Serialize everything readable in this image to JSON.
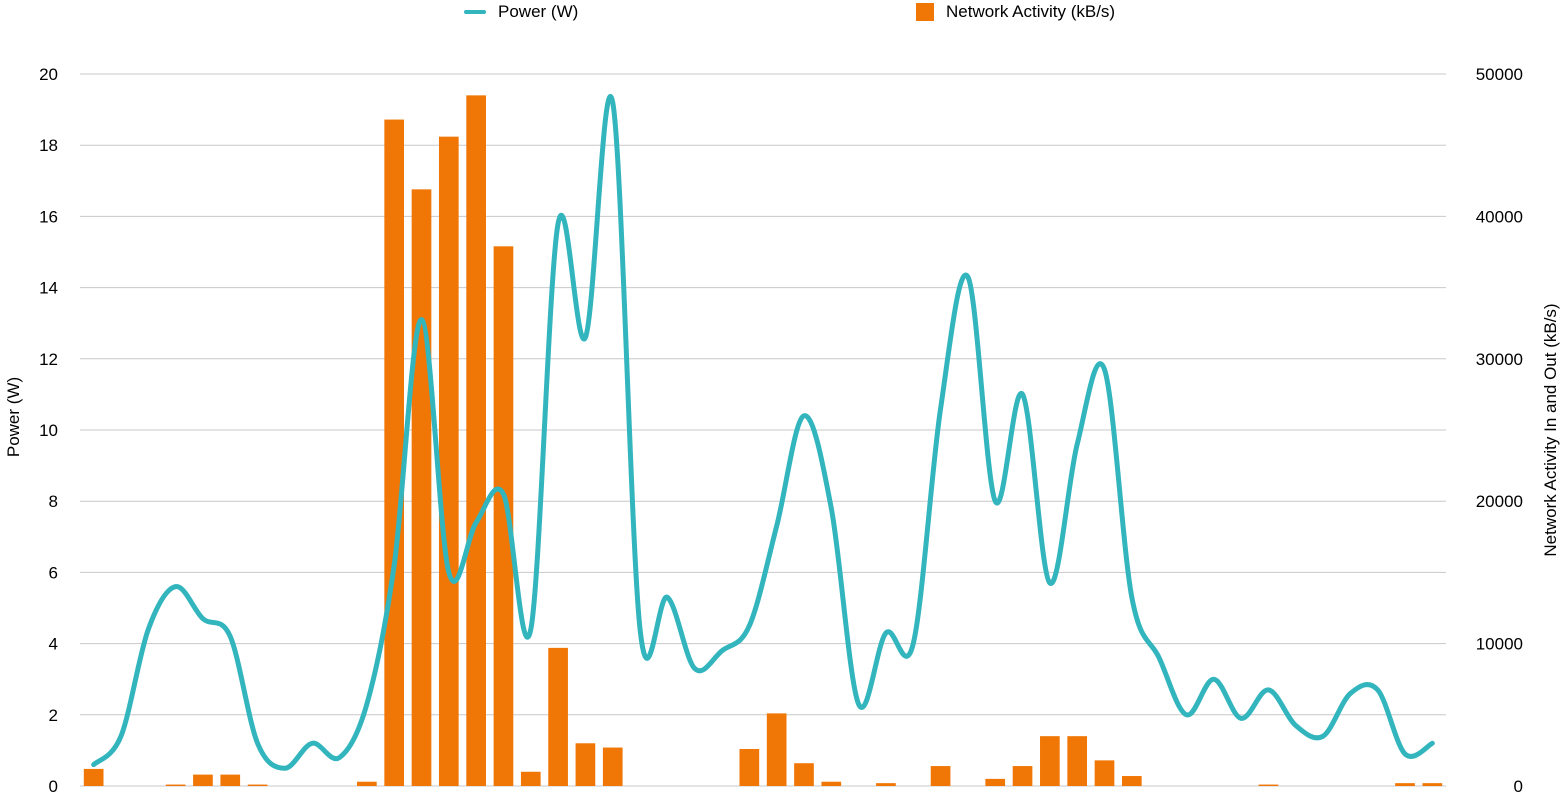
{
  "chart_data": {
    "type": "bar+line",
    "title": "",
    "legend": {
      "placement": "top",
      "entries": [
        {
          "label": "Power (W)",
          "marker": "line",
          "color": "#33B5BE"
        },
        {
          "label": "Network Activity (kB/s)",
          "marker": "box",
          "color": "#F07605"
        }
      ]
    },
    "y_left": {
      "label": "Power (W)",
      "range": [
        0,
        20
      ],
      "ticks": [
        "0",
        "2",
        "4",
        "6",
        "8",
        "10",
        "12",
        "14",
        "16",
        "18",
        "20"
      ]
    },
    "y_right": {
      "label": "Network Activity In and Out (kB/s)",
      "range": [
        0,
        50000
      ],
      "ticks": [
        "0",
        "10000",
        "20000",
        "30000",
        "40000",
        "50000"
      ]
    },
    "grid": true,
    "x": [
      1,
      2,
      3,
      4,
      5,
      6,
      7,
      8,
      9,
      10,
      11,
      12,
      13,
      14,
      15,
      16,
      17,
      18,
      19,
      20,
      21,
      22,
      23,
      24,
      25,
      26,
      27,
      28,
      29,
      30,
      31,
      32,
      33,
      34,
      35,
      36,
      37,
      38,
      39,
      40,
      41,
      42,
      43,
      44,
      45,
      46,
      47,
      48,
      49,
      50
    ],
    "series": [
      {
        "name": "Network Activity (kB/s)",
        "type": "bar",
        "axis": "right",
        "color": "#F07605",
        "values": [
          1200,
          0,
          0,
          100,
          800,
          800,
          100,
          0,
          0,
          0,
          300,
          46800,
          41900,
          45600,
          48500,
          37900,
          1000,
          9700,
          3000,
          2700,
          0,
          0,
          0,
          0,
          2600,
          5100,
          1600,
          300,
          0,
          200,
          0,
          1400,
          0,
          500,
          1400,
          3500,
          3500,
          1800,
          700,
          0,
          0,
          0,
          0,
          100,
          0,
          0,
          0,
          0,
          200,
          200
        ]
      },
      {
        "name": "Power (W)",
        "type": "line",
        "axis": "left",
        "color": "#33B5BE",
        "values": [
          0.6,
          1.4,
          4.4,
          5.6,
          4.7,
          4.2,
          1.2,
          0.5,
          1.2,
          0.8,
          2.3,
          6.2,
          13.1,
          6.0,
          7.4,
          8.2,
          4.4,
          15.8,
          12.6,
          19.2,
          4.4,
          5.3,
          3.3,
          3.8,
          4.5,
          7.3,
          10.4,
          7.8,
          2.3,
          4.3,
          4.0,
          10.6,
          14.3,
          8.0,
          11.0,
          5.7,
          9.6,
          11.7,
          5.3,
          3.6,
          2.0,
          3.0,
          1.9,
          2.7,
          1.7,
          1.4,
          2.6,
          2.7,
          0.9,
          1.2
        ]
      }
    ]
  }
}
